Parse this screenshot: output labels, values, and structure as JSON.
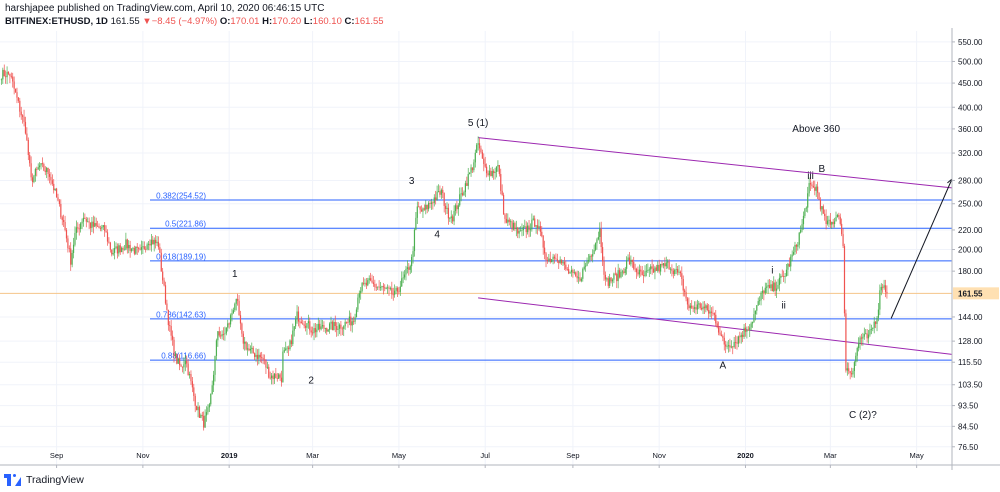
{
  "header": {
    "publisher": "harshjapee published on TradingView.com, April 10, 2020 06:46:15 UTC",
    "symbol": "BITFINEX:ETHUSD, 1D",
    "last": "161.55",
    "change": "−8.45 (−4.97%)",
    "o_label": "O:",
    "o": "170.01",
    "h_label": "H:",
    "h": "170.20",
    "l_label": "L:",
    "l": "160.10",
    "c_label": "C:",
    "c": "161.55"
  },
  "footer": {
    "brand": "TradingView",
    "logo_icon": "tradingview-logo-icon"
  },
  "colors": {
    "up": "#4caf50",
    "down": "#ef5350",
    "fib": "#2962ff",
    "channel": "#9c27b0",
    "price_line": "#f5c58a",
    "price_tag": "#ffe0b2"
  },
  "chart_data": {
    "type": "candlestick",
    "y_scale": "log",
    "ylim": [
      70,
      580
    ],
    "xlim": [
      "2018-07-23",
      "2020-05-26"
    ],
    "y_ticks": [
      "550.00",
      "500.00",
      "450.00",
      "400.00",
      "360.00",
      "320.00",
      "280.00",
      "250.00",
      "220.00",
      "200.00",
      "180.00",
      "161.55",
      "144.00",
      "128.00",
      "115.50",
      "103.50",
      "93.50",
      "84.50",
      "76.50"
    ],
    "x_ticks": [
      {
        "date": "2018-09-01",
        "label": "Sep",
        "bold": false
      },
      {
        "date": "2018-11-01",
        "label": "Nov",
        "bold": false
      },
      {
        "date": "2019-01-01",
        "label": "2019",
        "bold": true
      },
      {
        "date": "2019-03-01",
        "label": "Mar",
        "bold": false
      },
      {
        "date": "2019-05-01",
        "label": "May",
        "bold": false
      },
      {
        "date": "2019-07-01",
        "label": "Jul",
        "bold": false
      },
      {
        "date": "2019-09-01",
        "label": "Sep",
        "bold": false
      },
      {
        "date": "2019-11-01",
        "label": "Nov",
        "bold": false
      },
      {
        "date": "2020-01-01",
        "label": "2020",
        "bold": true
      },
      {
        "date": "2020-03-01",
        "label": "Mar",
        "bold": false
      },
      {
        "date": "2020-05-01",
        "label": "May",
        "bold": false
      }
    ],
    "last_price": 161.55,
    "price_path": [
      [
        "2018-07-24",
        470
      ],
      [
        "2018-07-30",
        470
      ],
      [
        "2018-08-10",
        360
      ],
      [
        "2018-08-14",
        280
      ],
      [
        "2018-08-20",
        300
      ],
      [
        "2018-08-27",
        290
      ],
      [
        "2018-09-06",
        228
      ],
      [
        "2018-09-11",
        190
      ],
      [
        "2018-09-14",
        215
      ],
      [
        "2018-09-20",
        235
      ],
      [
        "2018-09-25",
        225
      ],
      [
        "2018-10-05",
        220
      ],
      [
        "2018-10-10",
        197
      ],
      [
        "2018-10-20",
        205
      ],
      [
        "2018-10-30",
        196
      ],
      [
        "2018-11-05",
        210
      ],
      [
        "2018-11-12",
        205
      ],
      [
        "2018-11-14",
        182
      ],
      [
        "2018-11-20",
        135
      ],
      [
        "2018-11-24",
        118
      ],
      [
        "2018-11-28",
        112
      ],
      [
        "2018-12-01",
        118
      ],
      [
        "2018-12-07",
        98
      ],
      [
        "2018-12-10",
        91
      ],
      [
        "2018-12-14",
        86
      ],
      [
        "2018-12-18",
        92
      ],
      [
        "2018-12-21",
        110
      ],
      [
        "2018-12-24",
        135
      ],
      [
        "2018-12-27",
        130
      ],
      [
        "2019-01-01",
        140
      ],
      [
        "2019-01-05",
        155
      ],
      [
        "2019-01-07",
        152
      ],
      [
        "2019-01-10",
        130
      ],
      [
        "2019-01-15",
        122
      ],
      [
        "2019-01-20",
        120
      ],
      [
        "2019-01-25",
        117
      ],
      [
        "2019-01-30",
        108
      ],
      [
        "2019-02-05",
        108
      ],
      [
        "2019-02-07",
        107
      ],
      [
        "2019-02-08",
        120
      ],
      [
        "2019-02-12",
        122
      ],
      [
        "2019-02-18",
        145
      ],
      [
        "2019-02-24",
        140
      ],
      [
        "2019-03-01",
        135
      ],
      [
        "2019-03-10",
        137
      ],
      [
        "2019-03-20",
        138
      ],
      [
        "2019-03-30",
        142
      ],
      [
        "2019-04-03",
        165
      ],
      [
        "2019-04-10",
        170
      ],
      [
        "2019-04-20",
        165
      ],
      [
        "2019-04-28",
        160
      ],
      [
        "2019-05-05",
        175
      ],
      [
        "2019-05-10",
        190
      ],
      [
        "2019-05-14",
        245
      ],
      [
        "2019-05-18",
        240
      ],
      [
        "2019-05-25",
        255
      ],
      [
        "2019-05-31",
        265
      ],
      [
        "2019-06-04",
        240
      ],
      [
        "2019-06-08",
        235
      ],
      [
        "2019-06-15",
        265
      ],
      [
        "2019-06-22",
        300
      ],
      [
        "2019-06-26",
        335
      ],
      [
        "2019-06-30",
        300
      ],
      [
        "2019-07-05",
        290
      ],
      [
        "2019-07-10",
        300
      ],
      [
        "2019-07-15",
        230
      ],
      [
        "2019-07-20",
        225
      ],
      [
        "2019-07-25",
        215
      ],
      [
        "2019-08-06",
        230
      ],
      [
        "2019-08-14",
        190
      ],
      [
        "2019-08-20",
        195
      ],
      [
        "2019-08-28",
        180
      ],
      [
        "2019-09-05",
        172
      ],
      [
        "2019-09-15",
        200
      ],
      [
        "2019-09-20",
        220
      ],
      [
        "2019-09-24",
        170
      ],
      [
        "2019-10-05",
        178
      ],
      [
        "2019-10-10",
        190
      ],
      [
        "2019-10-20",
        175
      ],
      [
        "2019-10-26",
        180
      ],
      [
        "2019-11-08",
        186
      ],
      [
        "2019-11-16",
        175
      ],
      [
        "2019-11-22",
        150
      ],
      [
        "2019-11-30",
        152
      ],
      [
        "2019-12-10",
        145
      ],
      [
        "2019-12-17",
        125
      ],
      [
        "2019-12-25",
        128
      ],
      [
        "2020-01-05",
        140
      ],
      [
        "2020-01-14",
        165
      ],
      [
        "2020-01-20",
        165
      ],
      [
        "2020-01-28",
        175
      ],
      [
        "2020-02-05",
        200
      ],
      [
        "2020-02-10",
        225
      ],
      [
        "2020-02-15",
        270
      ],
      [
        "2020-02-20",
        270
      ],
      [
        "2020-02-26",
        230
      ],
      [
        "2020-03-01",
        225
      ],
      [
        "2020-03-07",
        240
      ],
      [
        "2020-03-10",
        200
      ],
      [
        "2020-03-12",
        112
      ],
      [
        "2020-03-16",
        110
      ],
      [
        "2020-03-22",
        130
      ],
      [
        "2020-03-28",
        130
      ],
      [
        "2020-04-03",
        145
      ],
      [
        "2020-04-06",
        170
      ],
      [
        "2020-04-09",
        165
      ],
      [
        "2020-04-10",
        161.55
      ]
    ],
    "fib_levels": [
      {
        "label": "0.382(254.52)",
        "value": 254.52
      },
      {
        "label": "0.5(221.86)",
        "value": 221.86
      },
      {
        "label": "0.618(189.19)",
        "value": 189.19
      },
      {
        "label": "0.786(142.63)",
        "value": 142.63
      },
      {
        "label": "0.88(116.66)",
        "value": 116.66
      }
    ],
    "channel_lines": [
      {
        "from": [
          "2019-06-26",
          345
        ],
        "to": [
          "2020-05-26",
          270
        ]
      },
      {
        "from": [
          "2019-06-26",
          158
        ],
        "to": [
          "2020-05-26",
          120
        ]
      }
    ],
    "projection_arrow": {
      "from": [
        "2020-04-13",
        143
      ],
      "to": [
        "2020-05-26",
        282
      ]
    },
    "annotations": [
      {
        "text": "1",
        "date": "2019-01-05",
        "price": 175
      },
      {
        "text": "2",
        "date": "2019-02-28",
        "price": 104
      },
      {
        "text": "3",
        "date": "2019-05-10",
        "price": 275
      },
      {
        "text": "4",
        "date": "2019-05-28",
        "price": 212
      },
      {
        "text": "5 (1)",
        "date": "2019-06-26",
        "price": 365
      },
      {
        "text": "Above 360",
        "date": "2020-02-20",
        "price": 355
      },
      {
        "text": "B",
        "date": "2020-02-24",
        "price": 292
      },
      {
        "text": "iii",
        "date": "2020-02-16",
        "price": 282
      },
      {
        "text": "i",
        "date": "2020-01-20",
        "price": 178
      },
      {
        "text": "ii",
        "date": "2020-01-28",
        "price": 150
      },
      {
        "text": "A",
        "date": "2019-12-16",
        "price": 112
      },
      {
        "text": "C (2)?",
        "date": "2020-03-24",
        "price": 88
      }
    ]
  }
}
